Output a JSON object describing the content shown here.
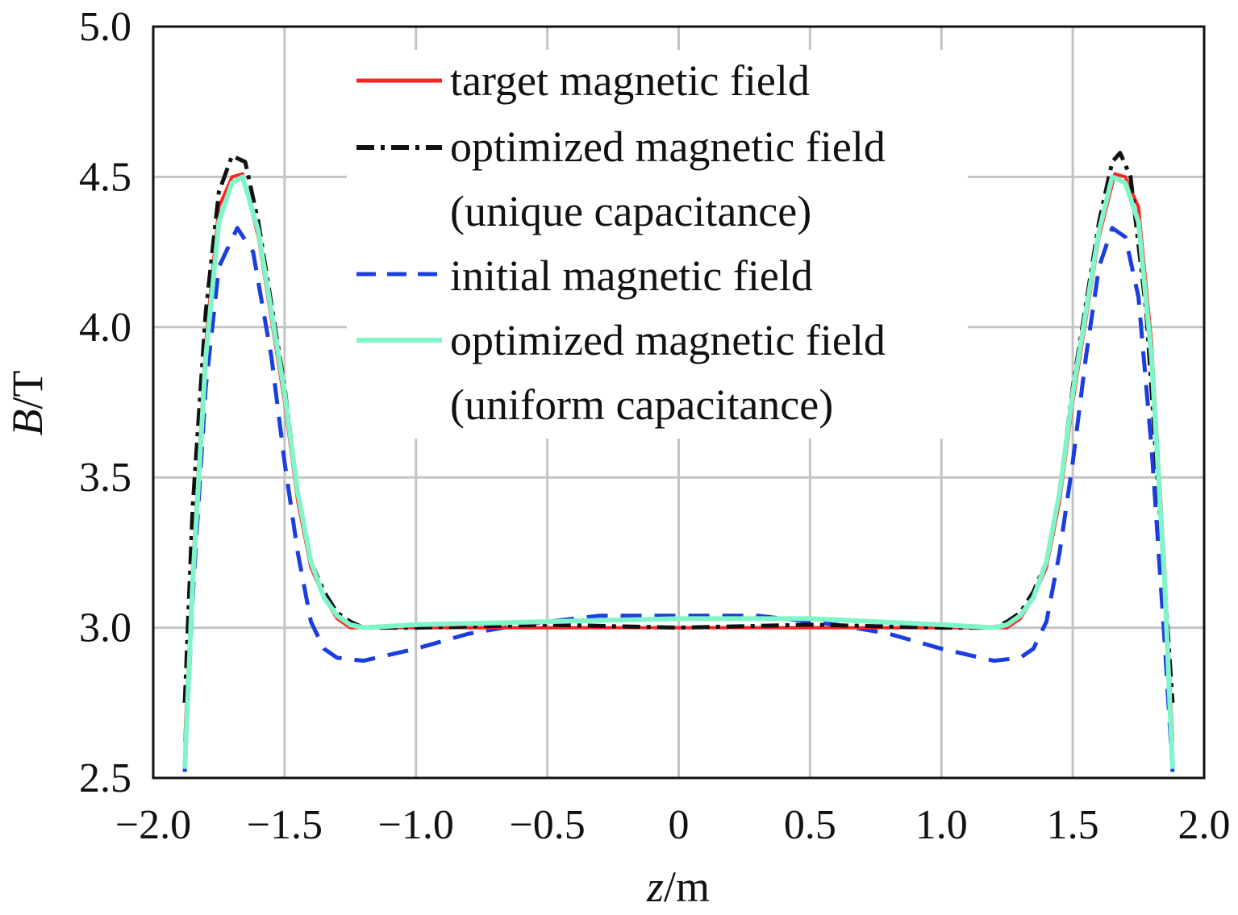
{
  "chart_data": {
    "type": "line",
    "xlabel": {
      "italic": "z",
      "unit": "/m"
    },
    "ylabel": {
      "italic": "B",
      "unit": "/T"
    },
    "xlim": [
      -2.0,
      2.0
    ],
    "ylim": [
      2.5,
      5.0
    ],
    "xticks": [
      -2.0,
      -1.5,
      -1.0,
      -0.5,
      0,
      0.5,
      1.0,
      1.5,
      2.0
    ],
    "xtick_labels": [
      "−2.0",
      "−1.5",
      "−1.0",
      "−0.5",
      "0",
      "0.5",
      "1.0",
      "1.5",
      "2.0"
    ],
    "yticks": [
      2.5,
      3.0,
      3.5,
      4.0,
      4.5,
      5.0
    ],
    "ytick_labels": [
      "2.5",
      "3.0",
      "3.5",
      "4.0",
      "4.5",
      "5.0"
    ],
    "grid": true,
    "legend_position": "top-center",
    "series": [
      {
        "name": "target magnetic field",
        "color": "#ff2222",
        "dash": "solid",
        "points": [
          [
            -1.88,
            2.62
          ],
          [
            -1.85,
            3.2
          ],
          [
            -1.8,
            3.95
          ],
          [
            -1.75,
            4.4
          ],
          [
            -1.7,
            4.5
          ],
          [
            -1.66,
            4.51
          ],
          [
            -1.6,
            4.3
          ],
          [
            -1.5,
            3.75
          ],
          [
            -1.45,
            3.42
          ],
          [
            -1.4,
            3.2
          ],
          [
            -1.35,
            3.1
          ],
          [
            -1.3,
            3.03
          ],
          [
            -1.25,
            3.0
          ],
          [
            -1.2,
            3.0
          ],
          [
            -1.0,
            3.0
          ],
          [
            -0.5,
            3.0
          ],
          [
            0,
            3.0
          ],
          [
            0.5,
            3.0
          ],
          [
            1.0,
            3.0
          ],
          [
            1.2,
            3.0
          ],
          [
            1.25,
            3.0
          ],
          [
            1.3,
            3.03
          ],
          [
            1.35,
            3.1
          ],
          [
            1.4,
            3.2
          ],
          [
            1.45,
            3.42
          ],
          [
            1.5,
            3.75
          ],
          [
            1.6,
            4.3
          ],
          [
            1.66,
            4.51
          ],
          [
            1.7,
            4.5
          ],
          [
            1.75,
            4.4
          ],
          [
            1.8,
            3.95
          ],
          [
            1.85,
            3.2
          ],
          [
            1.88,
            2.62
          ]
        ]
      },
      {
        "name": "optimized magnetic field",
        "name_line2": "(unique capacitance)",
        "color": "#111111",
        "dash": "dashdot",
        "points": [
          [
            -1.88,
            2.75
          ],
          [
            -1.85,
            3.4
          ],
          [
            -1.8,
            4.05
          ],
          [
            -1.75,
            4.45
          ],
          [
            -1.7,
            4.57
          ],
          [
            -1.65,
            4.55
          ],
          [
            -1.6,
            4.35
          ],
          [
            -1.5,
            3.8
          ],
          [
            -1.45,
            3.45
          ],
          [
            -1.4,
            3.22
          ],
          [
            -1.35,
            3.12
          ],
          [
            -1.3,
            3.05
          ],
          [
            -1.25,
            3.02
          ],
          [
            -1.2,
            3.0
          ],
          [
            -1.0,
            3.0
          ],
          [
            -0.5,
            3.01
          ],
          [
            0,
            3.0
          ],
          [
            0.5,
            3.01
          ],
          [
            1.0,
            3.0
          ],
          [
            1.2,
            3.0
          ],
          [
            1.25,
            3.02
          ],
          [
            1.3,
            3.05
          ],
          [
            1.35,
            3.12
          ],
          [
            1.4,
            3.22
          ],
          [
            1.45,
            3.45
          ],
          [
            1.5,
            3.8
          ],
          [
            1.6,
            4.35
          ],
          [
            1.65,
            4.55
          ],
          [
            1.68,
            4.58
          ],
          [
            1.72,
            4.5
          ],
          [
            1.78,
            4.05
          ],
          [
            1.83,
            3.4
          ],
          [
            1.88,
            2.75
          ]
        ]
      },
      {
        "name": "initial magnetic field",
        "color": "#1a3ee0",
        "dash": "dashed",
        "points": [
          [
            -1.88,
            2.52
          ],
          [
            -1.85,
            3.1
          ],
          [
            -1.8,
            3.8
          ],
          [
            -1.75,
            4.2
          ],
          [
            -1.68,
            4.33
          ],
          [
            -1.62,
            4.25
          ],
          [
            -1.55,
            3.9
          ],
          [
            -1.5,
            3.55
          ],
          [
            -1.45,
            3.25
          ],
          [
            -1.4,
            3.02
          ],
          [
            -1.35,
            2.93
          ],
          [
            -1.3,
            2.9
          ],
          [
            -1.2,
            2.89
          ],
          [
            -1.0,
            2.93
          ],
          [
            -0.8,
            2.98
          ],
          [
            -0.6,
            3.01
          ],
          [
            -0.3,
            3.04
          ],
          [
            0,
            3.04
          ],
          [
            0.3,
            3.04
          ],
          [
            0.6,
            3.01
          ],
          [
            0.8,
            2.98
          ],
          [
            1.0,
            2.93
          ],
          [
            1.2,
            2.89
          ],
          [
            1.3,
            2.9
          ],
          [
            1.35,
            2.93
          ],
          [
            1.4,
            3.02
          ],
          [
            1.45,
            3.25
          ],
          [
            1.5,
            3.55
          ],
          [
            1.55,
            3.9
          ],
          [
            1.6,
            4.2
          ],
          [
            1.65,
            4.33
          ],
          [
            1.7,
            4.3
          ],
          [
            1.75,
            4.1
          ],
          [
            1.8,
            3.6
          ],
          [
            1.85,
            2.95
          ],
          [
            1.88,
            2.52
          ]
        ]
      },
      {
        "name": "optimized magnetic field",
        "name_line2": "(uniform capacitance)",
        "color": "#80f5c8",
        "dash": "solid",
        "points": [
          [
            -1.88,
            2.53
          ],
          [
            -1.85,
            3.15
          ],
          [
            -1.8,
            3.9
          ],
          [
            -1.75,
            4.35
          ],
          [
            -1.7,
            4.48
          ],
          [
            -1.66,
            4.5
          ],
          [
            -1.6,
            4.32
          ],
          [
            -1.5,
            3.78
          ],
          [
            -1.45,
            3.45
          ],
          [
            -1.4,
            3.22
          ],
          [
            -1.35,
            3.1
          ],
          [
            -1.3,
            3.04
          ],
          [
            -1.25,
            3.01
          ],
          [
            -1.2,
            3.0
          ],
          [
            -1.0,
            3.01
          ],
          [
            -0.5,
            3.02
          ],
          [
            0,
            3.03
          ],
          [
            0.5,
            3.03
          ],
          [
            1.0,
            3.01
          ],
          [
            1.2,
            3.0
          ],
          [
            1.25,
            3.01
          ],
          [
            1.3,
            3.04
          ],
          [
            1.35,
            3.1
          ],
          [
            1.4,
            3.22
          ],
          [
            1.45,
            3.45
          ],
          [
            1.5,
            3.78
          ],
          [
            1.6,
            4.32
          ],
          [
            1.65,
            4.5
          ],
          [
            1.7,
            4.48
          ],
          [
            1.75,
            4.35
          ],
          [
            1.8,
            3.9
          ],
          [
            1.85,
            3.15
          ],
          [
            1.88,
            2.53
          ]
        ]
      }
    ]
  }
}
